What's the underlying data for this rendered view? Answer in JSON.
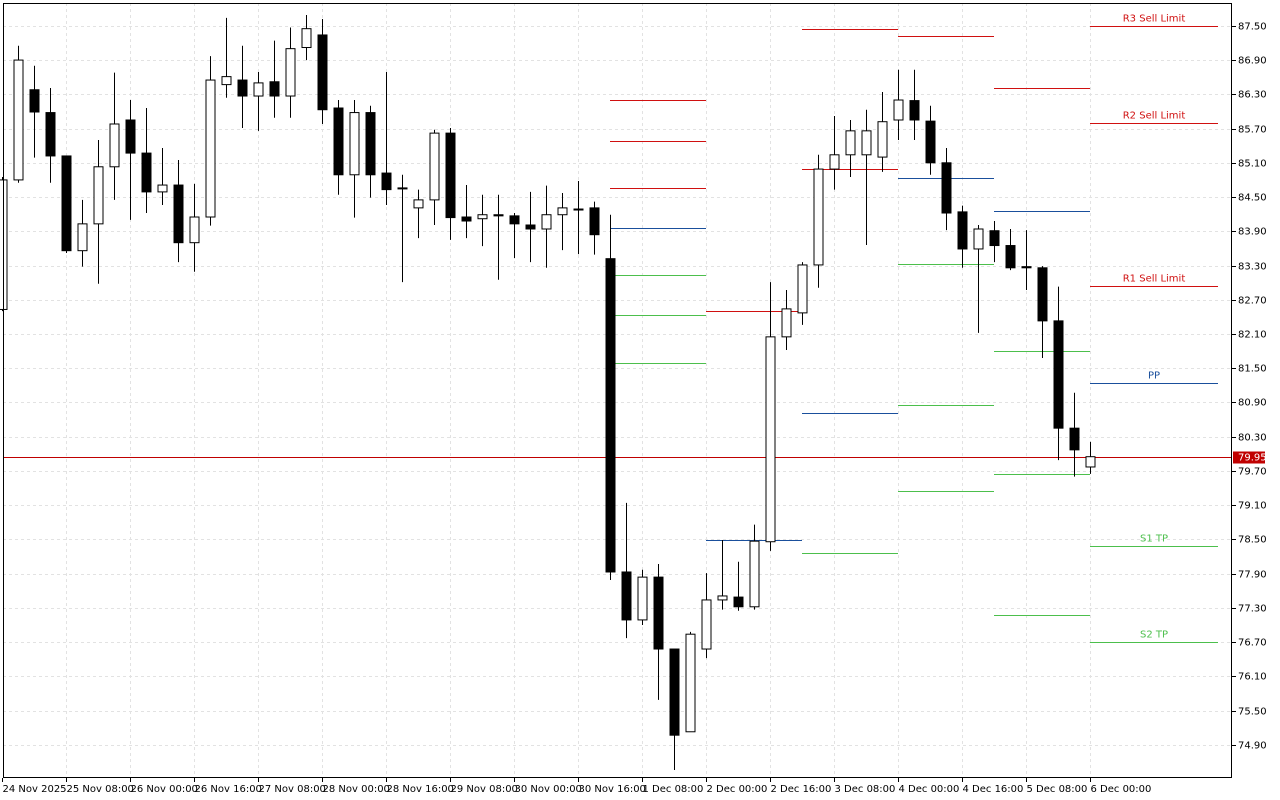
{
  "chart_data": {
    "type": "candlestick",
    "categories": [
      "24 Nov 2025",
      null,
      null,
      null,
      "25 Nov 08:00",
      null,
      null,
      null,
      "26 Nov 00:00",
      null,
      null,
      null,
      "26 Nov 16:00",
      null,
      null,
      null,
      "27 Nov 08:00",
      null,
      null,
      null,
      "28 Nov 00:00",
      null,
      null,
      null,
      "28 Nov 16:00",
      null,
      null,
      null,
      "29 Nov 08:00",
      null,
      null,
      null,
      "30 Nov 00:00",
      null,
      null,
      null,
      "30 Nov 16:00",
      null,
      null,
      null,
      "1 Dec 08:00",
      null,
      null,
      null,
      "2 Dec 00:00",
      null,
      null,
      null,
      "2 Dec 16:00",
      null,
      null,
      null,
      "3 Dec 08:00",
      null,
      null,
      null,
      "4 Dec 00:00",
      null,
      null,
      null,
      "4 Dec 16:00",
      null,
      null,
      null,
      "5 Dec 08:00",
      null,
      null,
      null,
      "6 Dec 00:00"
    ],
    "open": [
      82.53,
      84.8,
      86.38,
      85.98,
      85.22,
      83.56,
      84.03,
      85.03,
      85.85,
      85.27,
      84.59,
      84.71,
      83.7,
      84.15,
      86.47,
      86.55,
      86.27,
      86.52,
      86.27,
      87.12,
      87.34,
      86.06,
      84.89,
      85.98,
      84.92,
      84.66,
      84.31,
      84.45,
      85.62,
      84.15,
      84.12,
      84.19,
      84.17,
      84.01,
      83.94,
      84.19,
      84.29,
      84.31,
      83.42,
      77.93,
      77.09,
      77.84,
      76.58,
      75.13,
      76.58,
      77.44,
      77.49,
      77.32,
      78.46,
      82.05,
      82.47,
      83.31,
      84.99,
      85.24,
      85.24,
      85.2,
      85.85,
      86.19,
      85.83,
      85.1,
      84.24,
      83.59,
      83.91,
      83.65,
      83.28,
      83.26,
      82.33,
      80.45,
      79.77
    ],
    "high": [
      84.85,
      87.15,
      86.8,
      86.41,
      85.22,
      84.45,
      85.5,
      86.68,
      86.2,
      86.06,
      85.36,
      85.15,
      84.73,
      86.97,
      87.64,
      87.15,
      86.69,
      87.24,
      87.47,
      87.69,
      87.62,
      86.2,
      86.2,
      86.1,
      86.69,
      84.89,
      84.63,
      85.68,
      85.71,
      84.71,
      84.54,
      84.54,
      84.22,
      84.59,
      84.7,
      84.57,
      84.78,
      84.42,
      84.19,
      79.14,
      77.97,
      78.07,
      76.58,
      76.88,
      77.91,
      78.49,
      78.11,
      78.76,
      83.01,
      82.87,
      83.36,
      85.24,
      85.92,
      85.85,
      86.03,
      86.34,
      86.73,
      86.73,
      86.1,
      85.36,
      84.35,
      84.01,
      84.08,
      83.94,
      83.92,
      83.29,
      82.93,
      81.07,
      80.21
    ],
    "low": [
      82.5,
      84.75,
      85.19,
      84.75,
      83.52,
      83.28,
      82.98,
      84.45,
      84.1,
      84.22,
      84.36,
      83.36,
      83.19,
      84.0,
      86.24,
      85.71,
      85.66,
      85.89,
      85.89,
      86.9,
      85.78,
      84.54,
      84.14,
      84.49,
      84.36,
      83.01,
      83.78,
      84.01,
      83.75,
      83.78,
      83.64,
      83.05,
      83.43,
      83.36,
      83.26,
      83.57,
      83.5,
      83.49,
      77.79,
      76.77,
      77.0,
      75.69,
      74.46,
      75.13,
      76.42,
      77.27,
      77.25,
      77.27,
      78.3,
      81.82,
      82.26,
      82.91,
      84.63,
      84.85,
      83.66,
      84.94,
      85.5,
      85.5,
      84.89,
      83.92,
      83.26,
      82.12,
      83.36,
      83.22,
      82.87,
      81.68,
      79.89,
      79.6,
      79.65
    ],
    "close": [
      84.8,
      86.9,
      85.99,
      85.22,
      83.56,
      84.03,
      85.03,
      85.78,
      85.27,
      84.59,
      84.71,
      83.7,
      84.15,
      86.55,
      86.61,
      86.27,
      86.5,
      86.27,
      87.1,
      87.45,
      86.03,
      84.89,
      85.98,
      84.89,
      84.63,
      84.66,
      84.45,
      85.62,
      84.14,
      84.08,
      84.19,
      84.17,
      84.03,
      83.94,
      84.19,
      84.31,
      84.29,
      83.84,
      77.93,
      77.09,
      77.84,
      76.58,
      75.07,
      76.84,
      77.44,
      77.51,
      77.32,
      78.47,
      82.05,
      82.54,
      83.31,
      84.99,
      85.24,
      85.66,
      85.66,
      85.82,
      86.2,
      85.85,
      85.1,
      84.22,
      83.59,
      83.94,
      83.65,
      83.26,
      83.26,
      82.33,
      80.45,
      80.07,
      79.95
    ],
    "up_color": "#ffffff",
    "down_color": "#000000",
    "ylim": [
      74.32,
      87.9
    ],
    "yticks": [
      {
        "value": 87.5,
        "label": "87.50"
      },
      {
        "value": 86.9,
        "label": "86.90"
      },
      {
        "value": 86.3,
        "label": "86.30"
      },
      {
        "value": 85.7,
        "label": "85.70"
      },
      {
        "value": 85.1,
        "label": "85.10"
      },
      {
        "value": 84.5,
        "label": "84.50"
      },
      {
        "value": 83.9,
        "label": "83.90"
      },
      {
        "value": 83.3,
        "label": "83.30"
      },
      {
        "value": 82.7,
        "label": "82.70"
      },
      {
        "value": 82.1,
        "label": "82.10"
      },
      {
        "value": 81.5,
        "label": "81.50"
      },
      {
        "value": 80.9,
        "label": "80.90"
      },
      {
        "value": 80.3,
        "label": "80.30"
      },
      {
        "value": 79.7,
        "label": "79.70"
      },
      {
        "value": 79.1,
        "label": "79.10"
      },
      {
        "value": 78.5,
        "label": "78.50"
      },
      {
        "value": 77.9,
        "label": "77.90"
      },
      {
        "value": 77.3,
        "label": "77.30"
      },
      {
        "value": 76.7,
        "label": "76.70"
      },
      {
        "value": 76.1,
        "label": "76.10"
      },
      {
        "value": 75.5,
        "label": "75.50"
      },
      {
        "value": 74.9,
        "label": "74.90"
      }
    ],
    "grid": true,
    "last_price": {
      "value": 79.95,
      "label": "79.95"
    },
    "last_price_color": "#c00000",
    "resistance_color": "#d01010",
    "pivot_color": "#1a4f9c",
    "support_color": "#4cbf4c",
    "levels": [
      {
        "resistance": [
          86.2,
          85.48,
          84.66
        ],
        "pivot": 83.96,
        "support": [
          83.14,
          82.44,
          81.59
        ]
      },
      {
        "resistance": [
          82.51
        ],
        "pivot": 78.49,
        "support": []
      },
      {
        "resistance": [
          87.45,
          84.99
        ],
        "pivot": 80.72,
        "support": [
          78.26
        ]
      },
      {
        "resistance": [
          87.32
        ],
        "pivot": 84.84,
        "support": [
          83.33,
          80.86,
          79.35
        ]
      },
      {
        "resistance": [
          86.41
        ],
        "pivot": 84.26,
        "support": [
          81.8,
          79.65,
          77.18
        ]
      },
      {
        "resistance": [
          87.5,
          85.8,
          82.94
        ],
        "resistance_labels": [
          "R3 Sell Limit",
          "R2 Sell Limit",
          "R1 Sell Limit"
        ],
        "pivot": 81.24,
        "pivot_label": "PP",
        "support": [
          78.39,
          76.7
        ],
        "support_labels": [
          "S1 TP",
          "S2 TP"
        ]
      }
    ]
  }
}
